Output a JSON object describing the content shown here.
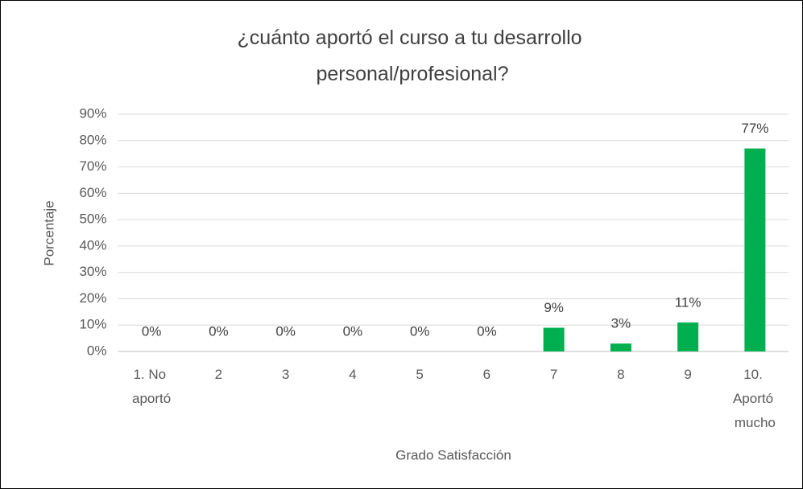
{
  "chart_data": {
    "type": "bar",
    "title": "¿cuánto aportó el curso a tu desarrollo personal/profesional?",
    "x_label": "Grado Satisfacción",
    "y_label": "Porcentaje",
    "categories": [
      "1. No aportó",
      "2",
      "3",
      "4",
      "5",
      "6",
      "7",
      "8",
      "9",
      "10. Aportó mucho"
    ],
    "values": [
      0,
      0,
      0,
      0,
      0,
      0,
      9,
      3,
      11,
      77
    ],
    "value_labels": [
      "0%",
      "0%",
      "0%",
      "0%",
      "0%",
      "0%",
      "9%",
      "3%",
      "11%",
      "77%"
    ],
    "color": "#00b050",
    "ylim": [
      0,
      90
    ],
    "yticks": [
      {
        "value": 0,
        "label": "0%"
      },
      {
        "value": 10,
        "label": "10%"
      },
      {
        "value": 20,
        "label": "20%"
      },
      {
        "value": 30,
        "label": "30%"
      },
      {
        "value": 40,
        "label": "40%"
      },
      {
        "value": 50,
        "label": "50%"
      },
      {
        "value": 60,
        "label": "60%"
      },
      {
        "value": 70,
        "label": "70%"
      },
      {
        "value": 80,
        "label": "80%"
      },
      {
        "value": 90,
        "label": "90%"
      }
    ],
    "grid": true
  }
}
